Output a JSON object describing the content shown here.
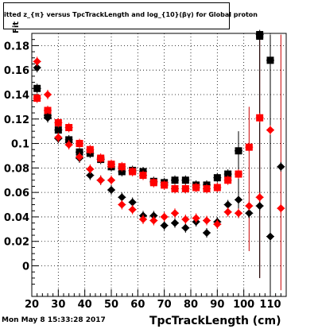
{
  "title": "itted  z_{π} versus TpcTrackLength and log_{10}(βγ) for Global proton",
  "footer_date": "Mon May  8 15:33:28 2017",
  "colors": {
    "black": "#000000",
    "red": "#ff0000",
    "dark_red": "#cc0000"
  },
  "chart_data": {
    "type": "scatter",
    "title": "itted  z_{π} versus TpcTrackLength and log_{10}(βγ) for Global proton",
    "xlabel": "TpcTrackLength (cm)",
    "ylabel": "Fit",
    "xlim": [
      20,
      116
    ],
    "ylim": [
      -0.025,
      0.19
    ],
    "xticks": [
      20,
      30,
      40,
      50,
      60,
      70,
      80,
      90,
      100,
      110
    ],
    "yticks": [
      0,
      0.02,
      0.04,
      0.06,
      0.08,
      0.1,
      0.12,
      0.14,
      0.16,
      0.18
    ],
    "ytick_labels": [
      "0",
      "0.02",
      "0.04",
      "0.06",
      "0.08",
      "0.1",
      "0.12",
      "0.14",
      "0.16",
      "0.18"
    ],
    "grid": true,
    "series": [
      {
        "marker": "square",
        "color": "#000000",
        "x": [
          22,
          26,
          30,
          34,
          38,
          42,
          46,
          50,
          54,
          58,
          62,
          66,
          70,
          74,
          78,
          82,
          86,
          90,
          94,
          98,
          106,
          110
        ],
        "y": [
          0.145,
          0.123,
          0.111,
          0.103,
          0.093,
          0.092,
          0.087,
          0.081,
          0.077,
          0.078,
          0.077,
          0.069,
          0.068,
          0.07,
          0.07,
          0.066,
          0.066,
          0.072,
          0.075,
          0.094,
          0.189,
          0.168
        ]
      },
      {
        "marker": "square",
        "color": "#ff0000",
        "x": [
          22,
          26,
          30,
          34,
          38,
          42,
          46,
          50,
          54,
          58,
          62,
          66,
          70,
          74,
          78,
          82,
          86,
          90,
          94,
          98,
          102,
          106
        ],
        "y": [
          0.137,
          0.127,
          0.117,
          0.113,
          0.1,
          0.095,
          0.088,
          0.083,
          0.081,
          0.077,
          0.074,
          0.068,
          0.066,
          0.063,
          0.063,
          0.064,
          0.063,
          0.064,
          0.07,
          0.075,
          0.097,
          0.121
        ]
      },
      {
        "marker": "diamond",
        "color": "#000000",
        "x": [
          22,
          26,
          30,
          34,
          38,
          42,
          46,
          50,
          54,
          58,
          62,
          66,
          70,
          74,
          78,
          82,
          86,
          90,
          94,
          98,
          102,
          106,
          110,
          114
        ],
        "y": [
          0.162,
          0.121,
          0.104,
          0.101,
          0.088,
          0.074,
          0.07,
          0.062,
          0.056,
          0.052,
          0.041,
          0.041,
          0.033,
          0.035,
          0.031,
          0.036,
          0.027,
          0.036,
          0.05,
          0.054,
          0.043,
          0.049,
          0.024,
          0.081
        ]
      },
      {
        "marker": "diamond",
        "color": "#ff0000",
        "x": [
          22,
          26,
          30,
          34,
          38,
          42,
          46,
          50,
          54,
          58,
          62,
          66,
          70,
          74,
          78,
          82,
          86,
          90,
          94,
          98,
          102,
          106,
          110,
          114
        ],
        "y": [
          0.167,
          0.14,
          0.105,
          0.099,
          0.089,
          0.079,
          0.07,
          0.07,
          0.05,
          0.046,
          0.038,
          0.037,
          0.04,
          0.043,
          0.038,
          0.039,
          0.037,
          0.034,
          0.044,
          0.043,
          0.049,
          0.056,
          0.111,
          0.047
        ]
      }
    ]
  }
}
